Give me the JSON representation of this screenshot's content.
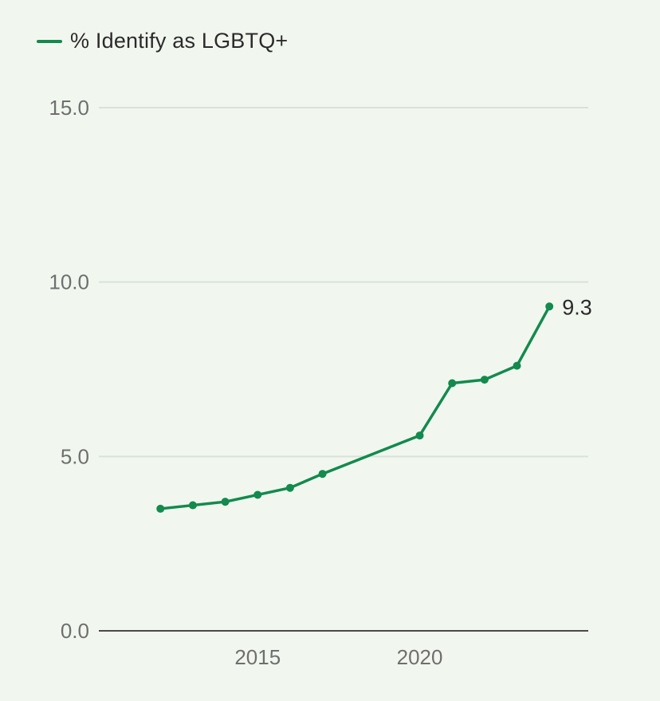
{
  "chart_data": {
    "type": "line",
    "title": "",
    "xlabel": "",
    "ylabel": "",
    "ylim": [
      0,
      15
    ],
    "yticks": [
      "0.0",
      "5.0",
      "10.0",
      "15.0"
    ],
    "ytick_values": [
      0,
      5,
      10,
      15
    ],
    "xticks": [
      "2015",
      "2020"
    ],
    "xtick_values": [
      2015,
      2020
    ],
    "grid": true,
    "legend_position": "top-left",
    "series": [
      {
        "name": "% Identify as LGBTQ+",
        "color": "#138a4e",
        "x": [
          2012,
          2013,
          2014,
          2015,
          2016,
          2017,
          2020,
          2021,
          2022,
          2023,
          2024
        ],
        "values": [
          3.5,
          3.6,
          3.7,
          3.9,
          4.1,
          4.5,
          5.6,
          7.1,
          7.2,
          7.6,
          9.3
        ]
      }
    ],
    "annotations": [
      {
        "x": 2024,
        "y": 9.3,
        "text": "9.3"
      }
    ]
  }
}
